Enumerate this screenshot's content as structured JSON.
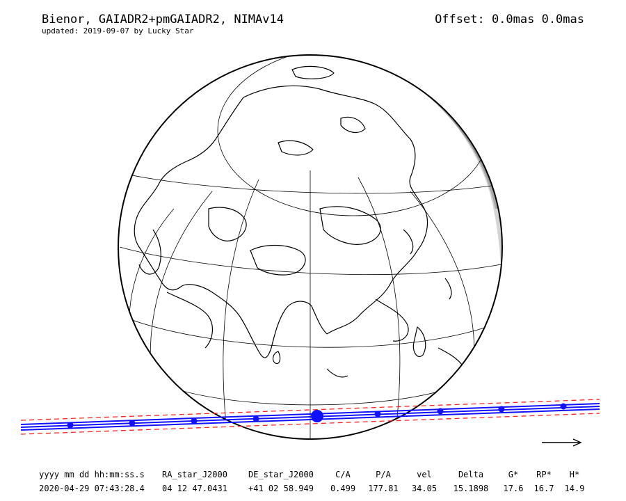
{
  "header": {
    "title": "Bienor, GAIADR2+pmGAIADR2, NIMAv14",
    "updated": "updated: 2019-09-07 by Lucky Star",
    "offset": "Offset: 0.0mas 0.0mas"
  },
  "colors": {
    "shadow_dark": "#8c8c8c",
    "shadow_light": "#d4d4d4",
    "path_line": "#1010ff",
    "uncertainty": "#ff2020",
    "land_outline": "#000000"
  },
  "table": {
    "headers": [
      "yyyy mm dd hh:mm:ss.s",
      "RA_star_J2000",
      "DE_star_J2000",
      "C/A",
      "P/A",
      "vel",
      "Delta",
      "G*",
      "RP*",
      "H*"
    ],
    "values": [
      "2020-04-29 07:43:28.4",
      "04 12 47.0431",
      "+41 02 58.949",
      "0.499",
      "177.81",
      "34.05",
      "15.1898",
      "17.6",
      "16.7",
      "14.9"
    ]
  },
  "icons": {
    "direction": "right-arrow-icon"
  }
}
